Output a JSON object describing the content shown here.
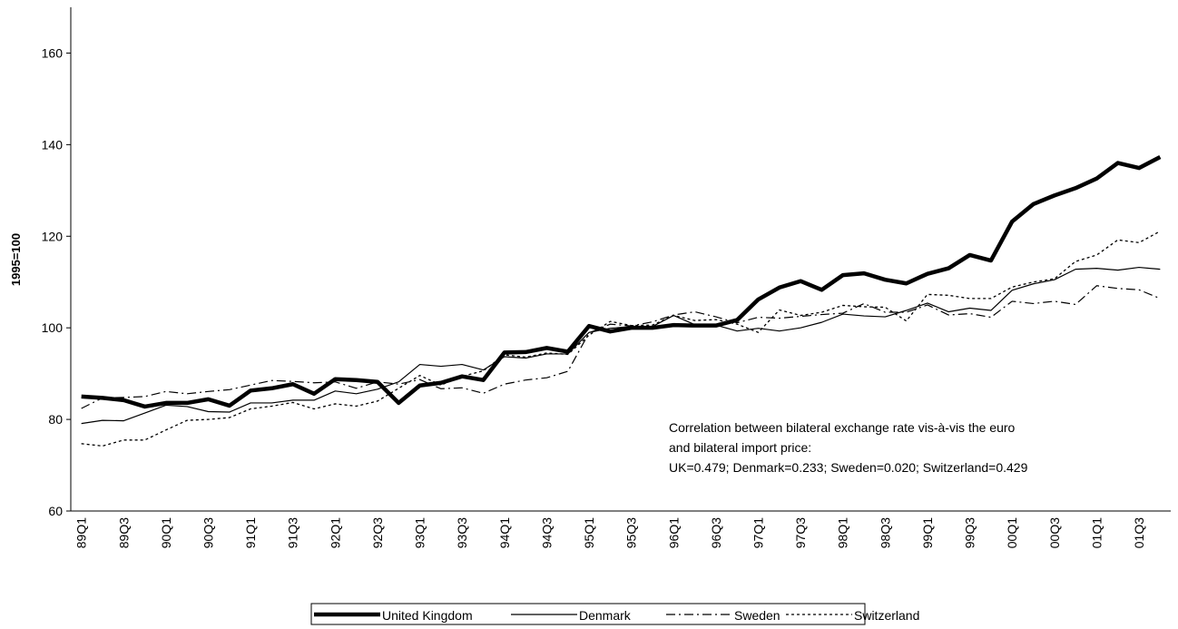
{
  "chart_data": {
    "type": "line",
    "y_label": "1995=100",
    "annotation": [
      "Correlation between bilateral exchange rate vis-à-vis the euro",
      "and bilateral import price:",
      "UK=0.479;  Denmark=0.233;  Sweden=0.020;  Switzerland=0.429"
    ],
    "categories": [
      "89Q1",
      null,
      "89Q3",
      null,
      "90Q1",
      null,
      "90Q3",
      null,
      "91Q1",
      null,
      "91Q3",
      null,
      "92Q1",
      null,
      "92Q3",
      null,
      "93Q1",
      null,
      "93Q3",
      null,
      "94Q1",
      null,
      "94Q3",
      null,
      "95Q1",
      null,
      "95Q3",
      null,
      "96Q1",
      null,
      "96Q3",
      null,
      "97Q1",
      null,
      "97Q3",
      null,
      "98Q1",
      null,
      "98Q3",
      null,
      "99Q1",
      null,
      "99Q3",
      null,
      "00Q1",
      null,
      "00Q3",
      null,
      "01Q1",
      null,
      "01Q3",
      null
    ],
    "ylim": [
      60,
      170
    ],
    "yticks": [
      60,
      80,
      100,
      120,
      140,
      160
    ],
    "series": [
      {
        "name": "United Kingdom",
        "color": "#000000",
        "values": [
          85,
          84.7,
          84.2,
          82.8,
          83.6,
          83.6,
          84.4,
          83,
          86.3,
          86.8,
          87.7,
          85.6,
          88.8,
          88.6,
          88.2,
          83.6,
          87.4,
          88,
          89.4,
          88.6,
          94.6,
          94.7,
          95.6,
          94.8,
          100.4,
          99.2,
          100,
          100,
          100.6,
          100.5,
          100.5,
          101.7,
          106.2,
          108.8,
          110.2,
          108.3,
          111.5,
          111.9,
          110.5,
          109.7,
          111.8,
          113,
          115.9,
          114.7,
          123.2,
          127,
          128.9,
          130.5,
          132.6,
          136,
          134.9,
          137.3
        ]
      },
      {
        "name": "Denmark",
        "color": "#000000",
        "values": [
          79.1,
          79.8,
          79.7,
          81.4,
          83.1,
          82.8,
          81.7,
          81.6,
          83.6,
          83.6,
          84.2,
          84.2,
          86.2,
          85.6,
          86.6,
          88.2,
          92,
          91.6,
          92,
          90.8,
          93.7,
          93.4,
          94.3,
          94.3,
          99,
          99.9,
          100.3,
          100.3,
          102.7,
          100.7,
          100.6,
          99.3,
          99.9,
          99.3,
          100,
          101.2,
          103,
          102.6,
          102.4,
          103.8,
          105.4,
          103.5,
          104.3,
          103.8,
          108.2,
          109.6,
          110.5,
          112.8,
          113,
          112.6,
          113.2,
          112.8
        ]
      },
      {
        "name": "Sweden",
        "color": "#000000",
        "values": [
          82.4,
          84.7,
          84.8,
          85,
          86.1,
          85.6,
          86.1,
          86.5,
          87.5,
          88.5,
          88.3,
          88,
          88.2,
          86.8,
          88.2,
          87.7,
          88.7,
          86.7,
          86.9,
          85.7,
          87.7,
          88.6,
          89.1,
          90.5,
          98.9,
          100.8,
          100.4,
          101.3,
          102.8,
          103.5,
          102.4,
          101.1,
          102.3,
          102.1,
          102.5,
          102.9,
          103.2,
          105.3,
          103.4,
          103.4,
          105,
          102.8,
          103.1,
          102.3,
          105.8,
          105.3,
          105.8,
          105.1,
          109.2,
          108.6,
          108.3,
          106.4
        ]
      },
      {
        "name": "Switzerland",
        "color": "#000000",
        "values": [
          74.7,
          74.2,
          75.5,
          75.5,
          77.7,
          79.8,
          80,
          80.4,
          82.3,
          82.9,
          83.7,
          82.3,
          83.4,
          82.9,
          84,
          86.8,
          89.6,
          87.5,
          89.4,
          90.6,
          94.1,
          93.6,
          94.5,
          94.2,
          98.4,
          101.4,
          100.5,
          100.6,
          102.7,
          101.6,
          101.8,
          100.8,
          99,
          103.9,
          102.7,
          103.4,
          104.9,
          104.6,
          104.5,
          101.5,
          107.3,
          107.1,
          106.4,
          106.4,
          108.9,
          110,
          110.7,
          114.5,
          115.9,
          119.2,
          118.6,
          121.1
        ]
      }
    ]
  }
}
